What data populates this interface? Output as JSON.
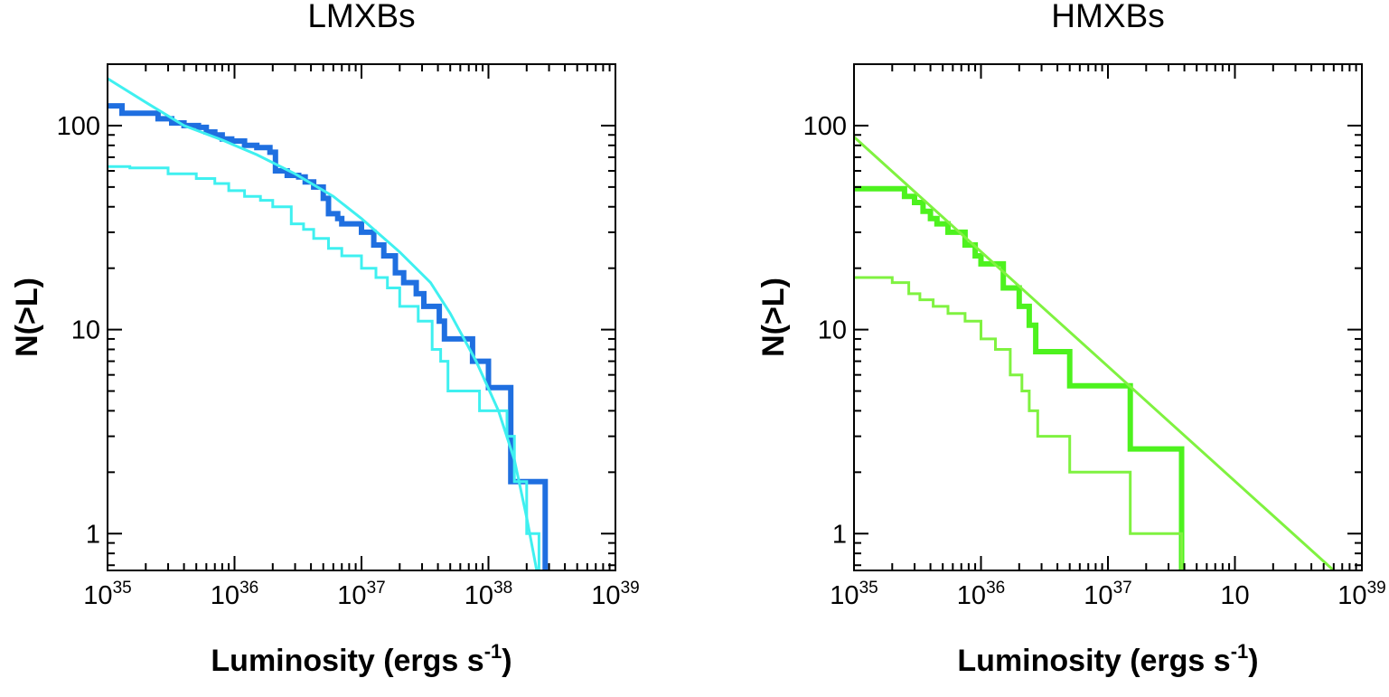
{
  "chart_data": [
    {
      "type": "line",
      "title": "LMXBs",
      "xlabel": "Luminosity (ergs s",
      "xlabel_sup": "-1",
      "xlabel_end": ")",
      "ylabel": "N(>L)",
      "xscale": "log",
      "yscale": "log",
      "xlim": [
        1e+35,
        1e+39
      ],
      "ylim": [
        0.66,
        200
      ],
      "x_tick_labels": [
        {
          "value": 1e+35,
          "base": "10",
          "sup": "35"
        },
        {
          "value": 1e+36,
          "base": "10",
          "sup": "36"
        },
        {
          "value": 1e+37,
          "base": "10",
          "sup": "37"
        },
        {
          "value": 1e+38,
          "base": "10",
          "sup": "38"
        },
        {
          "value": 1e+39,
          "base": "10",
          "sup": "39"
        }
      ],
      "y_tick_labels": [
        {
          "value": 1,
          "label": "1"
        },
        {
          "value": 10,
          "label": "10"
        },
        {
          "value": 100,
          "label": "100"
        }
      ],
      "grid": false,
      "legend": "none",
      "series": [
        {
          "style": "thick-step",
          "color": "#1f6fe0",
          "width": 6,
          "x": [
            1e+35,
            1.3e+35,
            2.5e+35,
            3.2e+35,
            4e+35,
            5.2e+35,
            6e+35,
            7e+35,
            8e+35,
            9.5e+35,
            1.2e+36,
            1.5e+36,
            1.9e+36,
            2.1e+36,
            2.6e+36,
            3.2e+36,
            3.6e+36,
            4.2e+36,
            5e+36,
            5.5e+36,
            6.5e+36,
            7e+36,
            1e+37,
            1.25e+37,
            1.5e+37,
            1.85e+37,
            2.15e+37,
            2.7e+37,
            3.1e+37,
            4.1e+37,
            4.5e+37,
            7.5e+37,
            1e+38,
            1.5e+38,
            1.7e+38,
            2.8e+38
          ],
          "y": [
            125,
            115,
            108,
            103,
            100,
            98,
            93,
            90,
            86,
            84,
            80,
            78,
            74,
            60,
            57,
            56,
            53,
            50,
            44,
            37,
            35,
            33,
            30,
            26,
            23,
            19,
            17,
            15,
            13,
            11,
            9,
            7.0,
            5.2,
            1.8,
            1.8,
            0.66
          ]
        },
        {
          "style": "thin-step",
          "color": "#3ff0f0",
          "width": 3,
          "x": [
            1e+35,
            1.5e+35,
            3e+35,
            5e+35,
            7e+35,
            9e+35,
            1.2e+36,
            1.6e+36,
            2e+36,
            2.8e+36,
            3.5e+36,
            4.2e+36,
            5.5e+36,
            7e+36,
            1e+37,
            1.3e+37,
            1.6e+37,
            2e+37,
            2.8e+37,
            3.6e+37,
            4.2e+37,
            4.8e+37,
            8.5e+37,
            1.4e+38,
            1.6e+38,
            2e+38,
            2.5e+38
          ],
          "y": [
            63,
            62,
            58,
            55,
            52,
            48,
            45,
            43,
            40,
            33,
            31,
            28,
            25,
            23,
            20,
            18,
            16,
            13,
            11,
            8,
            7,
            5,
            4,
            3,
            1.8,
            1.0,
            0.66
          ]
        },
        {
          "style": "model",
          "color": "#3ff0f0",
          "width": 3,
          "x": [
            1e+35,
            2e+35,
            4e+35,
            8e+35,
            1.5e+36,
            3e+36,
            6e+36,
            1e+37,
            2e+37,
            3.5e+37,
            5e+37,
            8e+37,
            1.2e+38,
            1.6e+38,
            2e+38,
            2.4e+38
          ],
          "y": [
            170,
            130,
            100,
            85,
            72,
            58,
            45,
            35,
            24,
            17,
            12,
            7,
            4,
            2.3,
            1.2,
            0.66
          ]
        }
      ]
    },
    {
      "type": "line",
      "title": "HMXBs",
      "xlabel": "Luminosity (ergs s",
      "xlabel_sup": "-1",
      "xlabel_end": ")",
      "ylabel": "N(>L)",
      "xscale": "log",
      "yscale": "log",
      "xlim": [
        1e+35,
        1e+39
      ],
      "ylim": [
        0.66,
        200
      ],
      "x_tick_labels": [
        {
          "value": 1e+35,
          "base": "10",
          "sup": "35"
        },
        {
          "value": 1e+36,
          "base": "10",
          "sup": "36"
        },
        {
          "value": 1e+37,
          "base": "10",
          "sup": "37"
        },
        {
          "value": 1e+38,
          "base": "10",
          "sup": ""
        },
        {
          "value": 1e+39,
          "base": "10",
          "sup": "39"
        }
      ],
      "y_tick_labels": [
        {
          "value": 1,
          "label": "1"
        },
        {
          "value": 10,
          "label": "10"
        },
        {
          "value": 100,
          "label": "100"
        }
      ],
      "grid": false,
      "legend": "none",
      "series": [
        {
          "style": "thick-step",
          "color": "#4df21e",
          "width": 6,
          "x": [
            1e+35,
            2.5e+35,
            3e+35,
            3.5e+35,
            4e+35,
            4.5e+35,
            5.5e+35,
            7.5e+35,
            9e+35,
            1e+36,
            1.5e+36,
            2e+36,
            2.4e+36,
            2.7e+36,
            5e+36,
            1.5e+37,
            3.8e+37
          ],
          "y": [
            49,
            45,
            42,
            38,
            35,
            33,
            30,
            26,
            23,
            21,
            16,
            13,
            10.5,
            7.8,
            5.3,
            2.6,
            0.66
          ]
        },
        {
          "style": "thin-step",
          "color": "#7ff240",
          "width": 3,
          "x": [
            1e+35,
            2e+35,
            2.7e+35,
            3.3e+35,
            4.2e+35,
            5.5e+35,
            7.5e+35,
            1e+36,
            1.3e+36,
            1.7e+36,
            2.1e+36,
            2.4e+36,
            2.8e+36,
            5e+36,
            1.5e+37,
            3.8e+37
          ],
          "y": [
            18,
            17,
            15,
            14,
            13,
            12,
            11,
            9,
            8,
            6,
            5,
            4,
            3,
            2,
            1,
            0.66
          ]
        },
        {
          "style": "model",
          "color": "#7ff240",
          "width": 3,
          "x": [
            1e+35,
            6e+38
          ],
          "y": [
            88,
            0.66
          ]
        }
      ]
    }
  ]
}
